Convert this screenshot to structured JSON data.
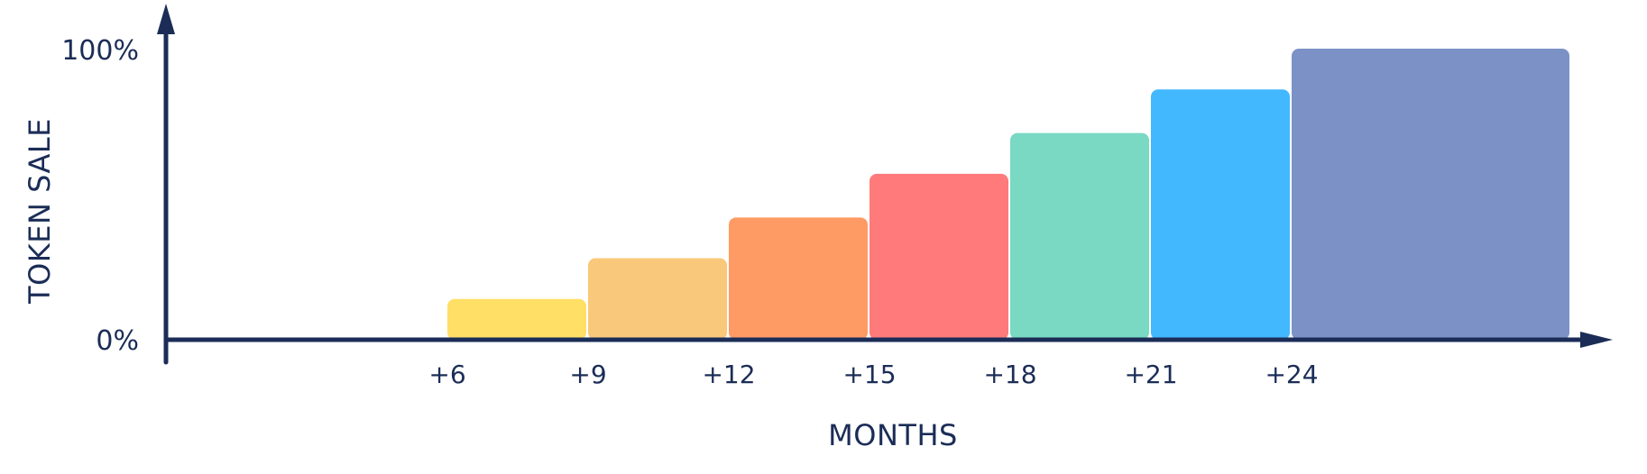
{
  "chart_data": {
    "type": "bar",
    "title": "",
    "xlabel": "MONTHS",
    "ylabel": "TOKEN SALE",
    "y_tick_labels": [
      "100%",
      "0%"
    ],
    "x_tick_labels": [
      "+6",
      "+9",
      "+12",
      "+15",
      "+18",
      "+21",
      "+24"
    ],
    "ylim": [
      0,
      100
    ],
    "grid": false,
    "legend": "none",
    "bars": [
      {
        "start": "+6",
        "end": "+9",
        "value": 14,
        "color": "#FFDF66"
      },
      {
        "start": "+9",
        "end": "+12",
        "value": 28,
        "color": "#F9C87A"
      },
      {
        "start": "+12",
        "end": "+15",
        "value": 42,
        "color": "#FE9A64"
      },
      {
        "start": "+15",
        "end": "+18",
        "value": 57,
        "color": "#FF7A7A"
      },
      {
        "start": "+18",
        "end": "+21",
        "value": 71,
        "color": "#79D9C2"
      },
      {
        "start": "+21",
        "end": "+24",
        "value": 86,
        "color": "#42B8FF"
      },
      {
        "start": "+24",
        "end": "",
        "value": 100,
        "color": "#7C92C6"
      }
    ]
  },
  "colors": {
    "axis": "#1B2D57",
    "text": "#1B2D57"
  }
}
